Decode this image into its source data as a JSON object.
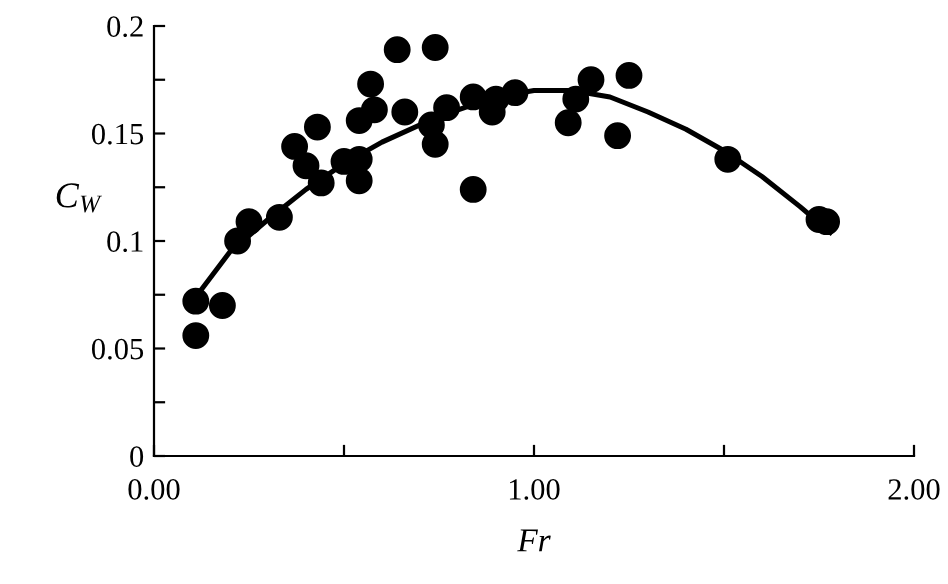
{
  "chart_data": {
    "type": "scatter",
    "xlabel": "Fr",
    "ylabel": "C$_{W}$",
    "xlim": [
      0,
      2
    ],
    "ylim": [
      0,
      0.2
    ],
    "xticks": [
      {
        "value": 0,
        "label": "0.00"
      },
      {
        "value": 0.5,
        "label": null
      },
      {
        "value": 1,
        "label": "1.00"
      },
      {
        "value": 1.5,
        "label": null
      },
      {
        "value": 2,
        "label": "2.00"
      }
    ],
    "yticks": [
      0,
      {
        "value": 0.025,
        "label": null
      },
      0.05,
      {
        "value": 0.075,
        "label": null
      },
      0.1,
      {
        "value": 0.125,
        "label": null
      },
      0.15,
      {
        "value": 0.175,
        "label": null
      },
      0.2
    ],
    "grid": false,
    "legend": false,
    "series": [
      {
        "color": "#000000",
        "marker": "circle",
        "x": [
          0.11,
          0.11,
          0.18,
          0.22,
          0.25,
          0.33,
          0.37,
          0.4,
          0.43,
          0.44,
          0.5,
          0.54,
          0.54,
          0.54,
          0.57,
          0.58,
          0.64,
          0.66,
          0.74,
          0.73,
          0.74,
          0.77,
          0.84,
          0.84,
          0.89,
          0.9,
          0.95,
          1.09,
          1.11,
          1.15,
          1.22,
          1.25,
          1.51,
          1.75,
          1.77
        ],
        "values": [
          0.072,
          0.056,
          0.07,
          0.1,
          0.109,
          0.111,
          0.144,
          0.135,
          0.153,
          0.127,
          0.137,
          0.156,
          0.138,
          0.128,
          0.173,
          0.161,
          0.189,
          0.16,
          0.19,
          0.154,
          0.145,
          0.162,
          0.124,
          0.167,
          0.16,
          0.166,
          0.169,
          0.155,
          0.166,
          0.175,
          0.149,
          0.177,
          0.138,
          0.11,
          0.109
        ]
      },
      {
        "type": "line",
        "color": "#000000",
        "marker": "none",
        "line_style": "solid",
        "x": [
          0.11,
          0.2,
          0.3,
          0.4,
          0.5,
          0.6,
          0.75,
          0.9,
          1.0,
          1.1,
          1.2,
          1.3,
          1.4,
          1.5,
          1.6,
          1.7,
          1.78
        ],
        "values": [
          0.074,
          0.095,
          0.11,
          0.124,
          0.136,
          0.146,
          0.158,
          0.167,
          0.17,
          0.17,
          0.167,
          0.16,
          0.152,
          0.142,
          0.13,
          0.116,
          0.104
        ]
      }
    ]
  }
}
